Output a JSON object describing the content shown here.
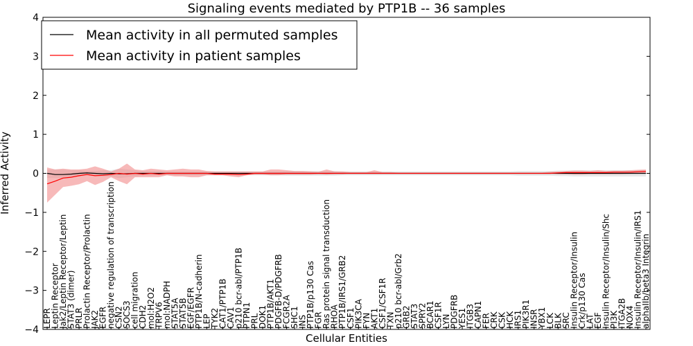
{
  "chart_data": {
    "type": "line",
    "title": "Signaling events mediated by PTP1B -- 36 samples",
    "xlabel": "Cellular Entities",
    "ylabel": "Inferred Activity",
    "ylim": [
      -4,
      4
    ],
    "yticks": [
      "−4",
      "−3",
      "−2",
      "−1",
      "0",
      "1",
      "2",
      "3",
      "4"
    ],
    "legend_position": "top-left",
    "categories": [
      "LEPR",
      "Leptin Receptor",
      "Jak2/Leptin Receptor/Leptin",
      "STAT3 (dimer)",
      "PRLR",
      "Prolactin Receptor/Prolactin",
      "JAK2",
      "EGFR",
      "negative regulation of transcription",
      "CSN2",
      "SOCS3",
      "cell migration",
      "CDH2",
      "mol:H2O2",
      "TRPV6",
      "mol:NADPH",
      "STAT5A",
      "STAT5B",
      "EGF/EGFR",
      "PTP1B/N-cadherin",
      "LEP",
      "TYK2",
      "CAT1/PTP1B",
      "CAV1",
      "p210 bcr-abl/PTP1B",
      "PTPN1",
      "PRL",
      "DOK1",
      "PTP1B/AKT1",
      "PDGFB-D/PDGFRB",
      "FCGR2A",
      "SHC1",
      "INS",
      "PTP1B/p130 Cas",
      "FGR",
      "Ras protein signal transduction",
      "RHOA",
      "PTP1B/IRS1/GRB2",
      "CSF1",
      "PIK3CA",
      "FYN",
      "AKT1",
      "CSF1/CSF1R",
      "TXN",
      "p210 bcr-abl/Grb2",
      "GRB2",
      "STAT3",
      "SPRY2",
      "BCAR1",
      "CSF1R",
      "LYN",
      "PDGFRB",
      "YES1",
      "ITGB3",
      "CAPN1",
      "FER",
      "CRK",
      "CSK",
      "HCK",
      "IRS1",
      "PIK3R1",
      "INSR",
      "YBX1",
      "LCK",
      "BLK",
      "SRC",
      "Insulin Receptor/Insulin",
      "Crk/p130 Cas",
      "LAT",
      "EGF",
      "Insulin Receptor/Insulin/Shc",
      "PI3K",
      "ITGA2B",
      "NOX4",
      "Insulin Receptor/Insulin/IRS1",
      "alphaIIb/beta3 Integrin"
    ],
    "series": [
      {
        "name": "Mean activity in all permuted samples",
        "color": "#000000",
        "values": [
          0.0,
          -0.03,
          -0.03,
          -0.02,
          0.0,
          0.01,
          0.0,
          -0.01,
          0.0,
          -0.01,
          -0.01,
          0.0,
          0.0,
          0.0,
          0.0,
          0.0,
          0.0,
          0.0,
          0.0,
          0.0,
          0.0,
          0.0,
          0.0,
          0.0,
          0.0,
          0.0,
          0.0,
          0.0,
          0.0,
          0.0,
          0.0,
          0.0,
          0.0,
          0.0,
          0.0,
          0.0,
          0.0,
          0.0,
          0.0,
          0.0,
          0.0,
          0.0,
          0.0,
          0.0,
          0.0,
          0.0,
          0.0,
          0.0,
          0.0,
          0.0,
          0.0,
          0.0,
          0.0,
          0.0,
          0.0,
          0.0,
          0.0,
          0.0,
          0.0,
          0.0,
          0.0,
          0.0,
          0.0,
          0.0,
          0.0,
          0.0,
          0.0,
          0.0,
          0.0,
          0.0,
          0.0,
          0.0,
          0.0,
          0.0,
          0.0,
          0.0
        ],
        "band_lower": [
          -0.12,
          -0.12,
          -0.12,
          -0.08,
          -0.08,
          -0.06,
          -0.06,
          -0.08,
          -0.08,
          -0.12,
          -0.1,
          -0.08,
          -0.06,
          -0.06,
          -0.06,
          -0.05,
          -0.05,
          -0.05,
          -0.05,
          -0.05,
          -0.05,
          -0.05,
          -0.05,
          -0.05,
          -0.05,
          -0.05,
          -0.05,
          -0.05,
          -0.05,
          -0.05,
          -0.06,
          -0.06,
          -0.06,
          -0.06,
          -0.06,
          -0.06,
          -0.06,
          -0.05,
          -0.05,
          -0.05,
          -0.05,
          -0.05,
          -0.05,
          -0.05,
          -0.05,
          -0.05,
          -0.05,
          -0.05,
          -0.05,
          -0.05,
          -0.05,
          -0.05,
          -0.05,
          -0.05,
          -0.05,
          -0.05,
          -0.05,
          -0.05,
          -0.05,
          -0.06,
          -0.06,
          -0.06,
          -0.06,
          -0.06,
          -0.07,
          -0.07,
          -0.08,
          -0.08,
          -0.08,
          -0.08,
          -0.08,
          -0.08,
          -0.08,
          -0.08,
          -0.08,
          -0.08
        ],
        "band_upper": [
          0.1,
          0.1,
          0.1,
          0.08,
          0.08,
          0.06,
          0.06,
          0.08,
          0.08,
          0.12,
          0.1,
          0.08,
          0.06,
          0.06,
          0.06,
          0.05,
          0.05,
          0.05,
          0.05,
          0.05,
          0.05,
          0.05,
          0.05,
          0.05,
          0.05,
          0.05,
          0.05,
          0.05,
          0.05,
          0.05,
          0.06,
          0.06,
          0.06,
          0.06,
          0.06,
          0.06,
          0.06,
          0.05,
          0.05,
          0.05,
          0.05,
          0.05,
          0.05,
          0.05,
          0.05,
          0.05,
          0.05,
          0.05,
          0.05,
          0.05,
          0.05,
          0.05,
          0.05,
          0.05,
          0.05,
          0.05,
          0.05,
          0.05,
          0.05,
          0.06,
          0.06,
          0.06,
          0.06,
          0.06,
          0.07,
          0.07,
          0.08,
          0.08,
          0.08,
          0.08,
          0.08,
          0.08,
          0.08,
          0.08,
          0.08,
          0.08
        ],
        "band_color": "#d9d9d9"
      },
      {
        "name": "Mean activity in patient samples",
        "color": "#ff0000",
        "values": [
          -0.27,
          -0.2,
          -0.12,
          -0.1,
          -0.06,
          -0.03,
          -0.06,
          -0.05,
          -0.03,
          0.0,
          -0.02,
          0.0,
          -0.02,
          0.0,
          -0.02,
          0.0,
          0.0,
          0.0,
          0.0,
          0.0,
          0.0,
          -0.02,
          -0.02,
          -0.02,
          -0.03,
          -0.02,
          0.0,
          0.0,
          0.0,
          0.0,
          0.0,
          0.0,
          0.0,
          0.0,
          0.0,
          0.0,
          0.0,
          0.0,
          0.0,
          0.0,
          0.0,
          0.0,
          0.0,
          0.0,
          0.0,
          0.0,
          0.0,
          0.0,
          0.0,
          0.0,
          0.0,
          0.0,
          0.0,
          0.0,
          0.0,
          0.0,
          0.0,
          0.0,
          0.0,
          0.0,
          0.0,
          0.0,
          0.0,
          0.0,
          0.01,
          0.02,
          0.02,
          0.02,
          0.02,
          0.02,
          0.02,
          0.03,
          0.03,
          0.03,
          0.04,
          0.05
        ],
        "band_lower": [
          -0.75,
          -0.55,
          -0.35,
          -0.32,
          -0.28,
          -0.2,
          -0.3,
          -0.22,
          -0.1,
          -0.2,
          -0.28,
          -0.1,
          -0.1,
          -0.1,
          -0.1,
          -0.05,
          -0.08,
          -0.08,
          -0.1,
          -0.1,
          -0.05,
          -0.05,
          -0.05,
          -0.08,
          -0.1,
          -0.05,
          -0.03,
          -0.03,
          -0.05,
          -0.05,
          -0.03,
          -0.03,
          -0.03,
          -0.03,
          -0.02,
          -0.03,
          -0.02,
          -0.02,
          0.0,
          0.0,
          0.0,
          0.0,
          0.0,
          0.0,
          0.0,
          0.0,
          0.0,
          0.0,
          0.0,
          0.0,
          0.0,
          0.0,
          0.0,
          0.0,
          0.0,
          0.0,
          0.0,
          0.0,
          0.0,
          0.0,
          0.0,
          0.0,
          0.0,
          0.0,
          -0.02,
          -0.02,
          -0.03,
          -0.03,
          -0.02,
          -0.02,
          -0.02,
          -0.02,
          -0.02,
          -0.01,
          -0.01,
          0.0
        ],
        "band_upper": [
          0.15,
          0.1,
          0.12,
          0.1,
          0.1,
          0.12,
          0.18,
          0.12,
          0.05,
          0.12,
          0.25,
          0.1,
          0.08,
          0.12,
          0.1,
          0.08,
          0.1,
          0.12,
          0.1,
          0.1,
          0.06,
          0.05,
          0.05,
          0.05,
          0.05,
          0.05,
          0.05,
          0.05,
          0.1,
          0.1,
          0.08,
          0.06,
          0.06,
          0.05,
          0.04,
          0.1,
          0.05,
          0.05,
          0.03,
          0.03,
          0.03,
          0.08,
          0.03,
          0.03,
          0.02,
          0.02,
          0.02,
          0.02,
          0.02,
          0.02,
          0.02,
          0.02,
          0.02,
          0.02,
          0.02,
          0.02,
          0.02,
          0.02,
          0.02,
          0.02,
          0.02,
          0.02,
          0.02,
          0.04,
          0.05,
          0.06,
          0.07,
          0.07,
          0.06,
          0.08,
          0.06,
          0.07,
          0.07,
          0.08,
          0.09,
          0.1
        ],
        "band_color": "#f08080"
      }
    ]
  }
}
